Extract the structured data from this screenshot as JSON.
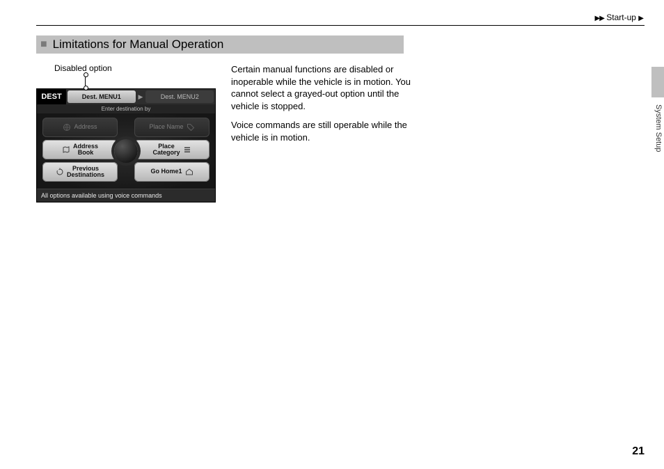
{
  "breadcrumb": {
    "label": "Start-up"
  },
  "heading": "Limitations for Manual Operation",
  "callout_label": "Disabled option",
  "body": {
    "p1": "Certain manual functions are disabled or inoperable while the vehicle is in motion. You cannot select a grayed-out option until the vehicle is stopped.",
    "p2": "Voice commands are still operable while the vehicle is in motion."
  },
  "device": {
    "dest": "DEST",
    "tab_active": "Dest. MENU1",
    "tab_inactive": "Dest. MENU2",
    "subhead": "Enter destination by",
    "options": {
      "address": "Address",
      "place_name": "Place Name",
      "address_book": "Address\nBook",
      "place_category": "Place\nCategory",
      "previous": "Previous\nDestinations",
      "go_home": "Go Home1"
    },
    "hint": "All options available using voice commands"
  },
  "side_section": "System Setup",
  "page_number": "21",
  "colors": {
    "heading_bg": "#bfbfbf",
    "tab_bg": "#bfbfbf"
  }
}
